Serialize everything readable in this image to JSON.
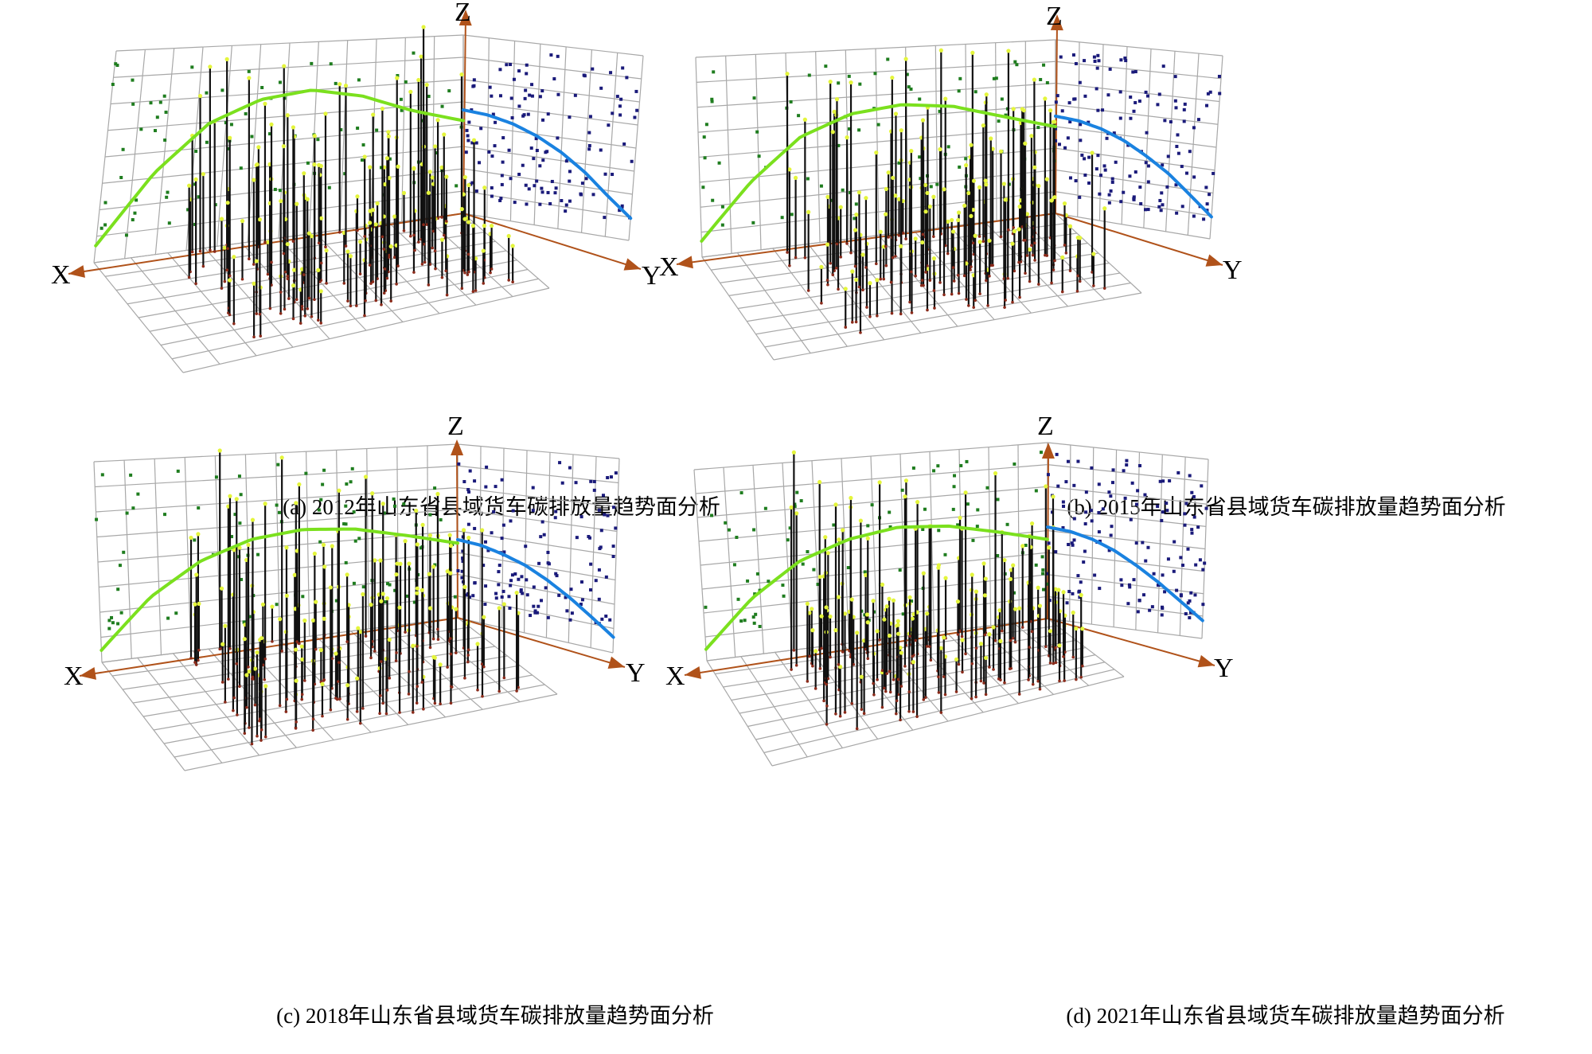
{
  "chart_data": [
    {
      "type": "scatter",
      "subtype": "3d-trend-surface",
      "title": "(a) 2012年山东省县域货车碳排放量趋势面分析",
      "axis_labels": {
        "x": "X",
        "y": "Y",
        "z": "Z"
      },
      "grid": true,
      "series": [
        {
          "color": "#7be01e",
          "role": "trend-curve-xz",
          "values": [
            0.08,
            0.4,
            0.62,
            0.72,
            0.75,
            0.7,
            0.6,
            0.52
          ]
        },
        {
          "color": "#1a82e0",
          "role": "trend-curve-yz",
          "values": [
            0.58,
            0.57,
            0.54,
            0.49,
            0.42,
            0.33,
            0.22,
            0.12
          ]
        },
        {
          "color": "#1f7d1f",
          "role": "xz-projection-points"
        },
        {
          "color": "#1a1a7a",
          "role": "yz-projection-points"
        },
        {
          "color": "#111111",
          "role": "sample-sticks"
        }
      ]
    },
    {
      "type": "scatter",
      "subtype": "3d-trend-surface",
      "title": "(b) 2015年山东省县域货车碳排放量趋势面分析",
      "axis_labels": {
        "x": "X",
        "y": "Y",
        "z": "Z"
      },
      "grid": true,
      "series": [
        {
          "color": "#7be01e",
          "role": "trend-curve-xz",
          "values": [
            0.08,
            0.35,
            0.56,
            0.66,
            0.69,
            0.66,
            0.58,
            0.5
          ]
        },
        {
          "color": "#1a82e0",
          "role": "trend-curve-yz",
          "values": [
            0.56,
            0.55,
            0.52,
            0.47,
            0.4,
            0.32,
            0.22,
            0.12
          ]
        },
        {
          "color": "#1f7d1f",
          "role": "xz-projection-points"
        },
        {
          "color": "#1a1a7a",
          "role": "yz-projection-points"
        },
        {
          "color": "#111111",
          "role": "sample-sticks"
        }
      ]
    },
    {
      "type": "scatter",
      "subtype": "3d-trend-surface",
      "title": "(c) 2018年山东省县域货车碳排放量趋势面分析",
      "axis_labels": {
        "x": "X",
        "y": "Y",
        "z": "Z"
      },
      "grid": true,
      "series": [
        {
          "color": "#7be01e",
          "role": "trend-curve-xz",
          "values": [
            0.06,
            0.3,
            0.46,
            0.55,
            0.58,
            0.56,
            0.5,
            0.43
          ]
        },
        {
          "color": "#1a82e0",
          "role": "trend-curve-yz",
          "values": [
            0.45,
            0.44,
            0.41,
            0.37,
            0.31,
            0.24,
            0.16,
            0.08
          ]
        },
        {
          "color": "#1f7d1f",
          "role": "xz-projection-points"
        },
        {
          "color": "#1a1a7a",
          "role": "yz-projection-points"
        },
        {
          "color": "#111111",
          "role": "sample-sticks"
        }
      ]
    },
    {
      "type": "scatter",
      "subtype": "3d-trend-surface",
      "title": "(d) 2021年山东省县域货车碳排放量趋势面分析",
      "axis_labels": {
        "x": "X",
        "y": "Y",
        "z": "Z"
      },
      "grid": true,
      "series": [
        {
          "color": "#7be01e",
          "role": "trend-curve-xz",
          "values": [
            0.06,
            0.3,
            0.47,
            0.56,
            0.6,
            0.58,
            0.52,
            0.45
          ]
        },
        {
          "color": "#1a82e0",
          "role": "trend-curve-yz",
          "values": [
            0.52,
            0.51,
            0.48,
            0.43,
            0.36,
            0.28,
            0.19,
            0.1
          ]
        },
        {
          "color": "#1f7d1f",
          "role": "xz-projection-points"
        },
        {
          "color": "#1a1a7a",
          "role": "yz-projection-points"
        },
        {
          "color": "#111111",
          "role": "sample-sticks"
        }
      ]
    }
  ]
}
